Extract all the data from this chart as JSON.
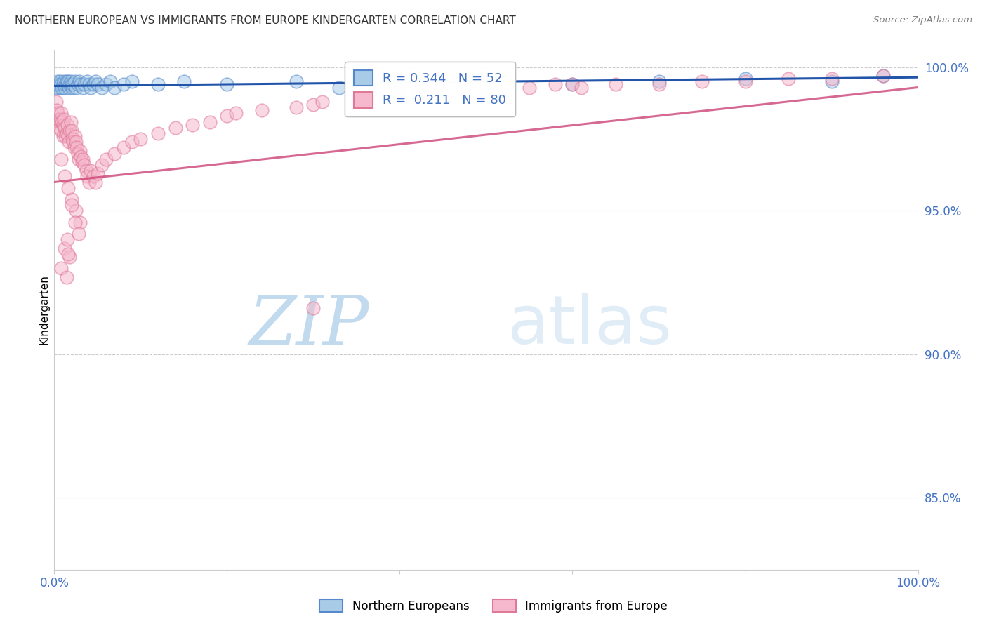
{
  "title": "NORTHERN EUROPEAN VS IMMIGRANTS FROM EUROPE KINDERGARTEN CORRELATION CHART",
  "source": "Source: ZipAtlas.com",
  "ylabel": "Kindergarten",
  "legend_label_blue": "Northern Europeans",
  "legend_label_pink": "Immigrants from Europe",
  "r_blue": 0.344,
  "n_blue": 52,
  "r_pink": 0.211,
  "n_pink": 80,
  "blue_face": "#a8cce8",
  "blue_edge": "#5588cc",
  "pink_face": "#f5b8cc",
  "pink_edge": "#e07898",
  "blue_line": "#2255aa",
  "pink_line": "#cc4477",
  "watermark_zip_color": "#b8d4ec",
  "watermark_atlas_color": "#c8ddf0",
  "axis_color": "#4472c4",
  "title_color": "#333333",
  "grid_color": "#cccccc",
  "background": "#ffffff",
  "blue_x": [
    0.002,
    0.003,
    0.004,
    0.005,
    0.006,
    0.007,
    0.008,
    0.009,
    0.01,
    0.011,
    0.012,
    0.013,
    0.014,
    0.015,
    0.016,
    0.017,
    0.018,
    0.019,
    0.02,
    0.021,
    0.022,
    0.024,
    0.025,
    0.027,
    0.029,
    0.031,
    0.033,
    0.035,
    0.038,
    0.04,
    0.042,
    0.045,
    0.048,
    0.05,
    0.055,
    0.06,
    0.065,
    0.07,
    0.08,
    0.09,
    0.12,
    0.15,
    0.2,
    0.28,
    0.33,
    0.4,
    0.5,
    0.6,
    0.7,
    0.8,
    0.9,
    0.96
  ],
  "blue_y": [
    0.993,
    0.994,
    0.995,
    0.994,
    0.993,
    0.995,
    0.994,
    0.993,
    0.994,
    0.995,
    0.993,
    0.994,
    0.995,
    0.994,
    0.995,
    0.993,
    0.994,
    0.995,
    0.994,
    0.993,
    0.994,
    0.995,
    0.993,
    0.994,
    0.995,
    0.994,
    0.993,
    0.994,
    0.995,
    0.994,
    0.993,
    0.994,
    0.995,
    0.994,
    0.993,
    0.994,
    0.995,
    0.993,
    0.994,
    0.995,
    0.994,
    0.995,
    0.994,
    0.995,
    0.993,
    0.994,
    0.995,
    0.994,
    0.995,
    0.996,
    0.995,
    0.997
  ],
  "pink_x": [
    0.002,
    0.003,
    0.004,
    0.005,
    0.006,
    0.006,
    0.007,
    0.008,
    0.008,
    0.009,
    0.01,
    0.01,
    0.011,
    0.012,
    0.013,
    0.014,
    0.015,
    0.016,
    0.017,
    0.018,
    0.019,
    0.02,
    0.021,
    0.022,
    0.023,
    0.024,
    0.025,
    0.026,
    0.027,
    0.028,
    0.03,
    0.031,
    0.032,
    0.033,
    0.035,
    0.037,
    0.038,
    0.04,
    0.042,
    0.045,
    0.048,
    0.05,
    0.055,
    0.06,
    0.07,
    0.08,
    0.09,
    0.1,
    0.12,
    0.14,
    0.16,
    0.18,
    0.2,
    0.21,
    0.24,
    0.28,
    0.3,
    0.31,
    0.4,
    0.42,
    0.5,
    0.55,
    0.58,
    0.6,
    0.61,
    0.65,
    0.7,
    0.75,
    0.8,
    0.85,
    0.9,
    0.02,
    0.025,
    0.03,
    0.012,
    0.015,
    0.018,
    0.008,
    0.3,
    0.96
  ],
  "pink_y": [
    0.988,
    0.985,
    0.984,
    0.982,
    0.981,
    0.979,
    0.982,
    0.978,
    0.984,
    0.981,
    0.976,
    0.98,
    0.982,
    0.979,
    0.976,
    0.977,
    0.98,
    0.976,
    0.974,
    0.978,
    0.981,
    0.978,
    0.975,
    0.974,
    0.972,
    0.976,
    0.974,
    0.972,
    0.97,
    0.968,
    0.971,
    0.969,
    0.967,
    0.968,
    0.966,
    0.964,
    0.962,
    0.96,
    0.964,
    0.962,
    0.96,
    0.963,
    0.966,
    0.968,
    0.97,
    0.972,
    0.974,
    0.975,
    0.977,
    0.979,
    0.98,
    0.981,
    0.983,
    0.984,
    0.985,
    0.986,
    0.987,
    0.988,
    0.99,
    0.991,
    0.992,
    0.993,
    0.994,
    0.994,
    0.993,
    0.994,
    0.994,
    0.995,
    0.995,
    0.996,
    0.996,
    0.954,
    0.95,
    0.946,
    0.937,
    0.94,
    0.934,
    0.93,
    0.916,
    0.997
  ],
  "pink_outlier_x": [
    0.008,
    0.012,
    0.016,
    0.02,
    0.024,
    0.028,
    0.016,
    0.014
  ],
  "pink_outlier_y": [
    0.968,
    0.962,
    0.958,
    0.952,
    0.946,
    0.942,
    0.935,
    0.927
  ],
  "ytick_values": [
    0.85,
    0.9,
    0.95,
    1.0
  ],
  "ytick_labels": [
    "85.0%",
    "90.0%",
    "95.0%",
    "100.0%"
  ],
  "ymin": 0.825,
  "ymax": 1.006,
  "xmin": 0.0,
  "xmax": 1.0
}
